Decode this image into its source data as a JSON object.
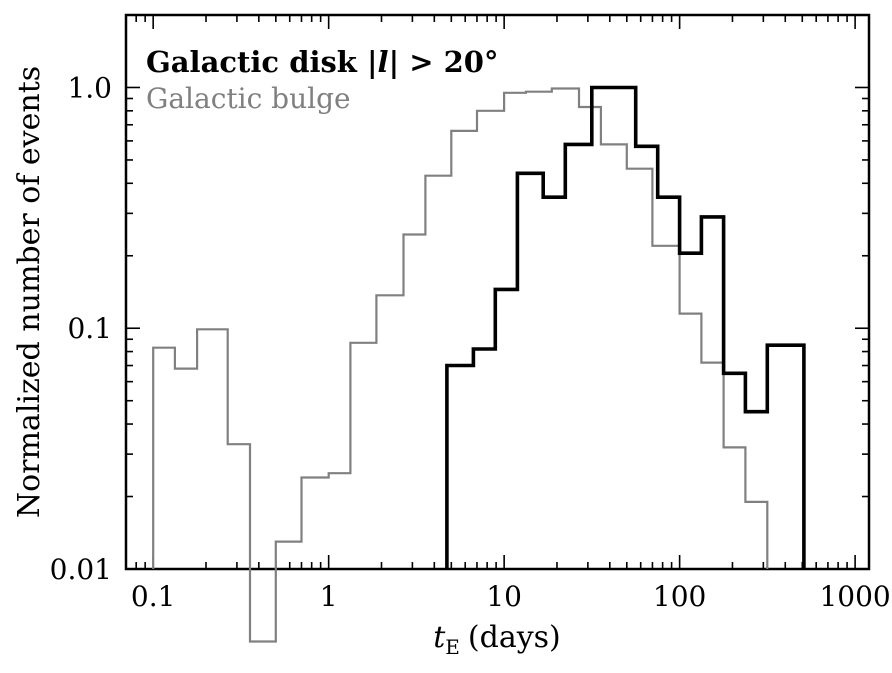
{
  "chart_data": {
    "type": "step",
    "xscale": "log",
    "yscale": "log",
    "xlim": [
      0.07,
      1200
    ],
    "ylim": [
      0.01,
      2.0
    ],
    "xlabel_var": "t",
    "xlabel_sub": "E",
    "xlabel_unit": "(days)",
    "ylabel": "Normalized number of events",
    "x_ticks": [
      {
        "value": 0.1,
        "label": "0.1"
      },
      {
        "value": 1,
        "label": "1"
      },
      {
        "value": 10,
        "label": "10"
      },
      {
        "value": 100,
        "label": "100"
      },
      {
        "value": 1000,
        "label": "1000"
      }
    ],
    "y_ticks": [
      {
        "value": 0.01,
        "label": "0.01"
      },
      {
        "value": 0.1,
        "label": "0.1"
      },
      {
        "value": 1.0,
        "label": "1.0"
      }
    ],
    "legend": {
      "disk_text": "Galactic disk |",
      "disk_var": "l",
      "disk_rest": "| > 20°",
      "bulge_text": "Galactic bulge",
      "placement": "top-left"
    },
    "series": [
      {
        "key": "bulge",
        "color": "#808080",
        "edges": [
          0.1,
          0.133,
          0.178,
          0.266,
          0.356,
          0.5,
          0.7,
          1.0,
          1.33,
          1.87,
          2.67,
          3.56,
          5.0,
          7.0,
          10.0,
          13.3,
          18.7,
          26.7,
          35.6,
          50.0,
          70.0,
          100.0,
          133.0,
          178.0,
          237.0,
          316.0
        ],
        "values": [
          0.083,
          0.068,
          0.099,
          0.033,
          0.005,
          0.013,
          0.024,
          0.025,
          0.087,
          0.137,
          0.245,
          0.43,
          0.66,
          0.8,
          0.95,
          0.96,
          0.99,
          0.83,
          0.58,
          0.46,
          0.22,
          0.115,
          0.072,
          0.032,
          0.019
        ]
      },
      {
        "key": "disk",
        "color": "#000000",
        "edges": [
          4.72,
          6.68,
          8.91,
          11.9,
          16.7,
          22.3,
          31.6,
          56.2,
          75.0,
          100.0,
          133.0,
          178.0,
          237.0,
          316.0,
          511.0
        ],
        "values": [
          0.07,
          0.082,
          0.145,
          0.44,
          0.35,
          0.58,
          1.0,
          0.57,
          0.35,
          0.205,
          0.29,
          0.065,
          0.045,
          0.085
        ]
      }
    ]
  }
}
